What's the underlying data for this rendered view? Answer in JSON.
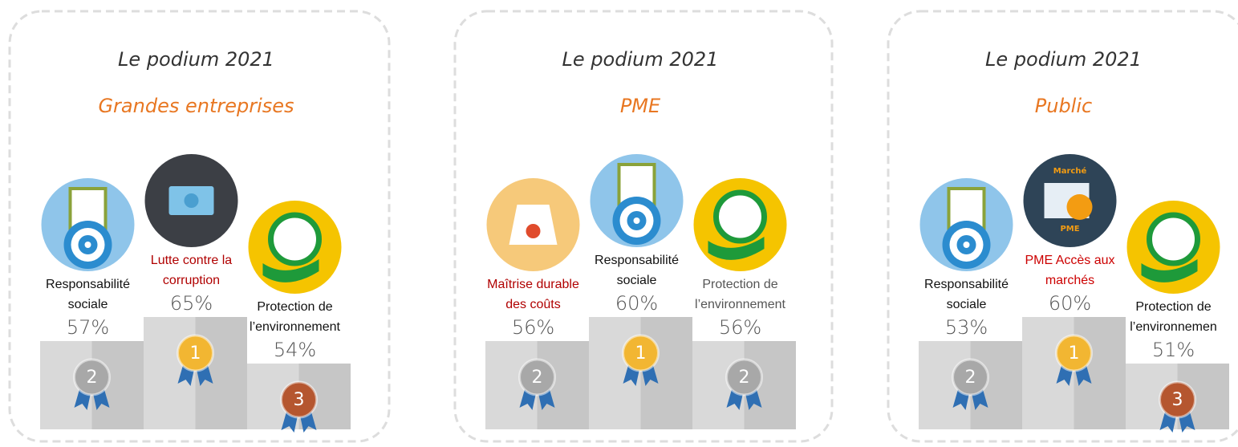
{
  "panels": [
    {
      "title": "Le podium 2021",
      "subtitle": "Grandes entreprises",
      "items": [
        {
          "label": [
            "Responsabilité",
            "sociale"
          ],
          "label_color": "#111111",
          "value": "57%",
          "rank": "2"
        },
        {
          "label": [
            "Lutte contre la",
            "corruption"
          ],
          "label_color": "#b00000",
          "value": "65%",
          "rank": "1"
        },
        {
          "label": [
            "Protection de",
            "l’environnement"
          ],
          "label_color": "#111111",
          "value": "54%",
          "rank": "3"
        }
      ]
    },
    {
      "title": "Le podium 2021",
      "subtitle": "PME",
      "items": [
        {
          "label": [
            "Maîtrise durable",
            "des coûts"
          ],
          "label_color": "#b00000",
          "value": "56%",
          "rank": "2"
        },
        {
          "label": [
            "Responsabilité",
            "sociale"
          ],
          "label_color": "#111111",
          "value": "60%",
          "rank": "1"
        },
        {
          "label": [
            "Protection de",
            "l’environnement"
          ],
          "label_color": "#555555",
          "value": "56%",
          "rank": "2"
        }
      ]
    },
    {
      "title": "Le podium 2021",
      "subtitle": "Public",
      "items": [
        {
          "label": [
            "Responsabilité",
            "sociale"
          ],
          "label_color": "#111111",
          "value": "53%",
          "rank": "2"
        },
        {
          "label": [
            "PME Accès aux",
            "marchés"
          ],
          "label_color": "#cc0000",
          "value": "60%",
          "rank": "1",
          "icon_texts": [
            "Marché",
            "PME"
          ]
        },
        {
          "label": [
            "Protection de",
            "l’environnemen"
          ],
          "label_color": "#111111",
          "value": "51%",
          "rank": "3"
        }
      ]
    }
  ]
}
